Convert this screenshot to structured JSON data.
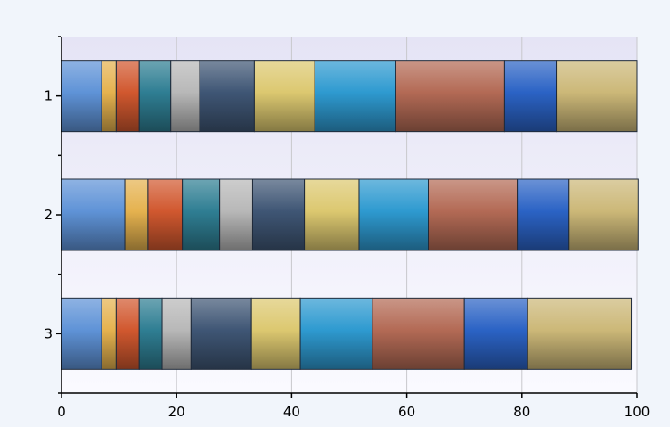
{
  "chart_data": {
    "type": "bar",
    "orientation": "horizontal",
    "stacked": "100%",
    "categories": [
      "1",
      "2",
      "3"
    ],
    "xlim": [
      0,
      100
    ],
    "xticks": [
      0,
      20,
      40,
      60,
      80,
      100
    ],
    "grid": "vertical",
    "legend": "none",
    "series": [
      {
        "color": "#5f93d7",
        "values": [
          7,
          11,
          7
        ]
      },
      {
        "color": "#e5b24f",
        "values": [
          2.5,
          4,
          2.5
        ]
      },
      {
        "color": "#d1582f",
        "values": [
          4,
          6,
          4
        ]
      },
      {
        "color": "#2f7e93",
        "values": [
          5.5,
          6.5,
          4
        ]
      },
      {
        "color": "#b8b8b8",
        "values": [
          5,
          5.7,
          5
        ]
      },
      {
        "color": "#3f5675",
        "values": [
          9.5,
          9,
          10.5
        ]
      },
      {
        "color": "#dcc870",
        "values": [
          10.5,
          9.5,
          8.5
        ]
      },
      {
        "color": "#2e9ad0",
        "values": [
          14,
          12,
          12.5
        ]
      },
      {
        "color": "#b36a55",
        "values": [
          19,
          15.5,
          16
        ]
      },
      {
        "color": "#2b63c5",
        "values": [
          9,
          9,
          11
        ]
      },
      {
        "color": "#ccb878",
        "values": [
          14,
          12,
          18
        ]
      }
    ]
  }
}
